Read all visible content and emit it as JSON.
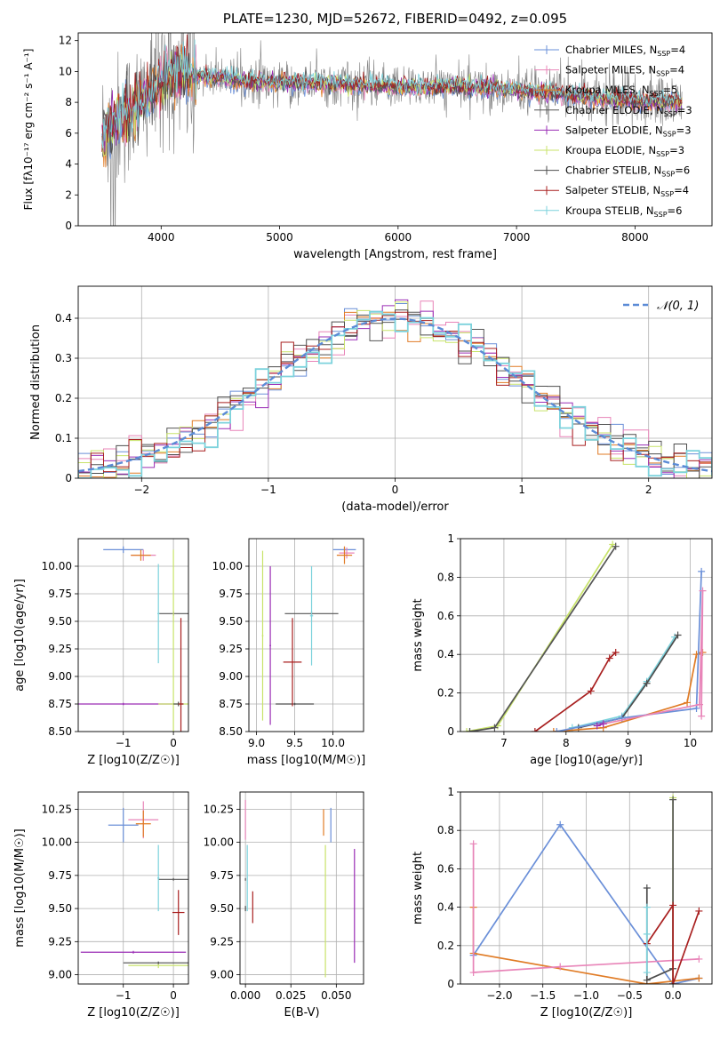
{
  "title": "PLATE=1230, MJD=52672, FIBERID=0492, z=0.095",
  "colors": {
    "Chabrier MILES": "#6a8fd8",
    "Salpeter MILES": "#e884b8",
    "Kroupa MILES": "#e07b25",
    "Chabrier ELODIE": "#555555",
    "Salpeter ELODIE": "#9a2cb5",
    "Kroupa ELODIE": "#c8e36a",
    "Chabrier STELIB": "#4d4d4d",
    "Salpeter STELIB": "#a81f1f",
    "Kroupa STELIB": "#7cd2dc",
    "data": "#808080"
  },
  "chart_data": [
    {
      "id": "spectrum",
      "type": "line",
      "xlabel": "wavelength [Angstrom, rest frame]",
      "ylabel": "Flux [f_λ10^-17 erg cm^-2 s^-1 A^-1]",
      "xlim": [
        3300,
        8650
      ],
      "ylim": [
        0,
        12.5
      ],
      "xticks": [
        4000,
        5000,
        6000,
        7000,
        8000
      ],
      "yticks": [
        0,
        2,
        4,
        6,
        8,
        10,
        12
      ],
      "legend": "top-right",
      "series": [
        {
          "name": "Chabrier MILES, N_SSP=4"
        },
        {
          "name": "Salpeter MILES, N_SSP=4"
        },
        {
          "name": "Kroupa MILES, N_SSP=5"
        },
        {
          "name": "Chabrier ELODIE, N_SSP=3"
        },
        {
          "name": "Salpeter ELODIE, N_SSP=3"
        },
        {
          "name": "Kroupa ELODIE, N_SSP=3"
        },
        {
          "name": "Chabrier STELIB, N_SSP=6"
        },
        {
          "name": "Salpeter STELIB, N_SSP=4"
        },
        {
          "name": "Kroupa STELIB, N_SSP=6"
        }
      ],
      "model_trend": {
        "x": [
          3500,
          3700,
          3900,
          4100,
          4400,
          4700,
          5000,
          5500,
          6000,
          6500,
          7000,
          7500,
          8000,
          8400
        ],
        "y": [
          6.0,
          7.2,
          8.5,
          10.0,
          9.6,
          9.4,
          9.3,
          9.2,
          9.0,
          9.0,
          8.8,
          8.4,
          8.1,
          8.0
        ]
      }
    },
    {
      "id": "residuals",
      "type": "line",
      "xlabel": "(data-model)/error",
      "ylabel": "Normed distribution",
      "xlim": [
        -2.5,
        2.5
      ],
      "ylim": [
        0,
        0.48
      ],
      "xticks": [
        -2,
        -1,
        0,
        1,
        2
      ],
      "yticks": [
        0.0,
        0.1,
        0.2,
        0.3,
        0.4
      ],
      "legend": "top-right",
      "reference_label": "𝒩(0, 1)",
      "bin_width": 0.1,
      "gaussian": {
        "mean": 0,
        "sigma": 1
      }
    },
    {
      "id": "age_vs_Z",
      "type": "scatter",
      "xlabel": "Z [log10(Z/Z☉)]",
      "ylabel": "age  [log10(age/yr)]",
      "xlim": [
        -1.9,
        0.3
      ],
      "ylim": [
        8.5,
        10.25
      ],
      "xticks": [
        -1,
        0
      ],
      "yticks": [
        8.5,
        8.75,
        9.0,
        9.25,
        9.5,
        9.75,
        10.0
      ],
      "ytick_labels": [
        "8.50",
        "8.75",
        "9.00",
        "9.25",
        "9.50",
        "9.75",
        "10.00"
      ],
      "points": [
        {
          "s": "Chabrier MILES",
          "x": -1.0,
          "xe": 0.4,
          "y": 10.15,
          "ye": 0.03
        },
        {
          "s": "Salpeter MILES",
          "x": -0.6,
          "xe": 0.25,
          "y": 10.1,
          "ye": 0.05
        },
        {
          "s": "Kroupa MILES",
          "x": -0.65,
          "xe": 0.2,
          "y": 10.1,
          "ye": 0.05
        },
        {
          "s": "Chabrier ELODIE",
          "x": 0.0,
          "xe": 0.3,
          "y": 9.57,
          "ye": 0.02
        },
        {
          "s": "Salpeter ELODIE",
          "x": -1.0,
          "xe": 1.0,
          "y": 8.75,
          "ye": 0.01
        },
        {
          "s": "Kroupa ELODIE",
          "x": 0.0,
          "xe": 0.3,
          "y": 8.75,
          "ye": 1.4
        },
        {
          "s": "Chabrier STELIB",
          "x": 0.1,
          "xe": 0.1,
          "y": 8.75,
          "ye": 0.02
        },
        {
          "s": "Salpeter STELIB",
          "x": 0.15,
          "xe": 0.05,
          "y": 8.75,
          "ye": 0.78
        },
        {
          "s": "Kroupa STELIB",
          "x": -0.3,
          "xe": 0.02,
          "y": 9.57,
          "ye": 0.45
        }
      ]
    },
    {
      "id": "age_vs_mass",
      "type": "scatter",
      "xlabel": "mass [log10(M/M☉)]",
      "ylabel": "",
      "xlim": [
        8.9,
        10.4
      ],
      "ylim": [
        8.5,
        10.25
      ],
      "xticks": [
        9.0,
        9.5,
        10.0
      ],
      "xtick_labels": [
        "9.0",
        "9.5",
        "10.0"
      ],
      "yticks": [
        8.5,
        8.75,
        9.0,
        9.25,
        9.5,
        9.75,
        10.0
      ],
      "ytick_labels": [
        "8.50",
        "8.75",
        "9.00",
        "9.25",
        "9.50",
        "9.75",
        "10.00"
      ],
      "points": [
        {
          "s": "Chabrier MILES",
          "x": 10.15,
          "xe": 0.15,
          "y": 10.15,
          "ye": 0.02
        },
        {
          "s": "Salpeter MILES",
          "x": 10.18,
          "xe": 0.1,
          "y": 10.12,
          "ye": 0.05
        },
        {
          "s": "Kroupa MILES",
          "x": 10.15,
          "xe": 0.1,
          "y": 10.1,
          "ye": 0.08
        },
        {
          "s": "Chabrier ELODIE",
          "x": 9.72,
          "xe": 0.35,
          "y": 9.57,
          "ye": 0.02
        },
        {
          "s": "Salpeter ELODIE",
          "x": 9.18,
          "xe": 0.01,
          "y": 9.28,
          "ye": 0.72
        },
        {
          "s": "Kroupa ELODIE",
          "x": 9.08,
          "xe": 0.01,
          "y": 9.37,
          "ye": 0.77
        },
        {
          "s": "Chabrier STELIB",
          "x": 9.5,
          "xe": 0.25,
          "y": 8.75,
          "ye": 0.01
        },
        {
          "s": "Salpeter STELIB",
          "x": 9.47,
          "xe": 0.12,
          "y": 9.13,
          "ye": 0.4
        },
        {
          "s": "Kroupa STELIB",
          "x": 9.72,
          "xe": 0.02,
          "y": 9.55,
          "ye": 0.45
        }
      ]
    },
    {
      "id": "weight_vs_age",
      "type": "line",
      "xlabel": "age  [log10(age/yr)]",
      "ylabel": "mass weight",
      "xlim": [
        6.3,
        10.35
      ],
      "ylim": [
        0,
        1.0
      ],
      "xticks": [
        7,
        8,
        9,
        10
      ],
      "yticks": [
        0.0,
        0.2,
        0.4,
        0.6,
        0.8,
        1.0
      ],
      "series": [
        {
          "s": "Kroupa ELODIE",
          "x": [
            6.4,
            6.9,
            8.75
          ],
          "y": [
            0.0,
            0.03,
            0.97
          ]
        },
        {
          "s": "Chabrier ELODIE",
          "x": [
            6.45,
            6.85,
            8.8
          ],
          "y": [
            0.0,
            0.02,
            0.96
          ]
        },
        {
          "s": "Salpeter STELIB",
          "x": [
            7.5,
            8.4,
            8.7,
            8.8
          ],
          "y": [
            0.0,
            0.21,
            0.38,
            0.41
          ]
        },
        {
          "s": "Kroupa STELIB",
          "x": [
            8.1,
            8.9,
            9.3,
            9.75
          ],
          "y": [
            0.02,
            0.08,
            0.26,
            0.49
          ]
        },
        {
          "s": "Chabrier STELIB",
          "x": [
            8.2,
            8.9,
            9.3,
            9.8
          ],
          "y": [
            0.02,
            0.07,
            0.25,
            0.5
          ]
        },
        {
          "s": "Kroupa MILES",
          "x": [
            7.8,
            8.6,
            9.95,
            10.1,
            10.2
          ],
          "y": [
            0.0,
            0.02,
            0.15,
            0.4,
            0.41
          ]
        },
        {
          "s": "Chabrier MILES",
          "x": [
            7.85,
            8.9,
            10.1,
            10.18
          ],
          "y": [
            0.0,
            0.07,
            0.12,
            0.83
          ]
        },
        {
          "s": "Salpeter MILES",
          "x": [
            8.6,
            10.15,
            10.2,
            10.18
          ],
          "y": [
            0.04,
            0.14,
            0.73,
            0.08
          ]
        },
        {
          "s": "Salpeter ELODIE",
          "x": [
            8.5,
            8.6
          ],
          "y": [
            0.03,
            0.04
          ]
        }
      ]
    },
    {
      "id": "mass_vs_Z",
      "type": "scatter",
      "xlabel": "Z [log10(Z/Z☉)]",
      "ylabel": "mass [log10(M/M☉)]",
      "xlim": [
        -1.9,
        0.3
      ],
      "ylim": [
        8.93,
        10.38
      ],
      "xticks": [
        -1,
        0
      ],
      "yticks": [
        9.0,
        9.25,
        9.5,
        9.75,
        10.0,
        10.25
      ],
      "ytick_labels": [
        "9.00",
        "9.25",
        "9.50",
        "9.75",
        "10.00",
        "10.25"
      ],
      "points": [
        {
          "s": "Chabrier MILES",
          "x": -1.0,
          "xe": 0.3,
          "y": 10.13,
          "ye": 0.13
        },
        {
          "s": "Salpeter MILES",
          "x": -0.6,
          "xe": 0.3,
          "y": 10.17,
          "ye": 0.14
        },
        {
          "s": "Kroupa MILES",
          "x": -0.6,
          "xe": 0.15,
          "y": 10.14,
          "ye": 0.1
        },
        {
          "s": "Chabrier ELODIE",
          "x": 0.0,
          "xe": 0.3,
          "y": 9.72,
          "ye": 0.01
        },
        {
          "s": "Salpeter ELODIE",
          "x": -0.8,
          "xe": 1.05,
          "y": 9.17,
          "ye": 0.01
        },
        {
          "s": "Kroupa ELODIE",
          "x": -0.3,
          "xe": 0.6,
          "y": 9.07,
          "ye": 0.02
        },
        {
          "s": "Chabrier STELIB",
          "x": -0.3,
          "xe": 0.7,
          "y": 9.09,
          "ye": 0.01
        },
        {
          "s": "Salpeter STELIB",
          "x": 0.1,
          "xe": 0.12,
          "y": 9.47,
          "ye": 0.17
        },
        {
          "s": "Kroupa STELIB",
          "x": -0.3,
          "xe": 0.02,
          "y": 9.73,
          "ye": 0.25
        }
      ]
    },
    {
      "id": "mass_vs_ebv",
      "type": "scatter",
      "xlabel": "E(B-V)",
      "ylabel": "",
      "xlim": [
        -0.003,
        0.065
      ],
      "ylim": [
        8.93,
        10.38
      ],
      "xticks": [
        0.0,
        0.025,
        0.05
      ],
      "xtick_labels": [
        "0.000",
        "0.025",
        "0.050"
      ],
      "yticks": [
        9.0,
        9.25,
        9.5,
        9.75,
        10.0,
        10.25
      ],
      "ytick_labels": [
        "9.00",
        "9.25",
        "9.50",
        "9.75",
        "10.00",
        "10.25"
      ],
      "points": [
        {
          "s": "Chabrier MILES",
          "x": 0.047,
          "xe": 0.0,
          "y": 10.13,
          "ye": 0.13
        },
        {
          "s": "Salpeter MILES",
          "x": 0.0,
          "xe": 0.0,
          "y": 10.17,
          "ye": 0.15
        },
        {
          "s": "Kroupa MILES",
          "x": 0.043,
          "xe": 0.0,
          "y": 10.15,
          "ye": 0.1
        },
        {
          "s": "Chabrier ELODIE",
          "x": 0.0,
          "xe": 0.0,
          "y": 9.72,
          "ye": 0.01
        },
        {
          "s": "Salpeter ELODIE",
          "x": 0.06,
          "xe": 0.0,
          "y": 9.52,
          "ye": 0.43
        },
        {
          "s": "Kroupa ELODIE",
          "x": 0.044,
          "xe": 0.0,
          "y": 9.48,
          "ye": 0.5
        },
        {
          "s": "Chabrier STELIB",
          "x": 0.0,
          "xe": 0.0,
          "y": 9.5,
          "ye": 0.02
        },
        {
          "s": "Salpeter STELIB",
          "x": 0.004,
          "xe": 0.0,
          "y": 9.51,
          "ye": 0.12
        },
        {
          "s": "Kroupa STELIB",
          "x": 0.001,
          "xe": 0.0,
          "y": 9.73,
          "ye": 0.25
        }
      ]
    },
    {
      "id": "weight_vs_Z",
      "type": "line",
      "xlabel": "Z [log10(Z/Z☉)]",
      "ylabel": "mass weight",
      "xlim": [
        -2.45,
        0.45
      ],
      "ylim": [
        0,
        1.0
      ],
      "xticks": [
        -2.0,
        -1.5,
        -1.0,
        -0.5,
        0.0
      ],
      "xtick_labels": [
        "−2.0",
        "−1.5",
        "−1.0",
        "−0.5",
        "0.0"
      ],
      "yticks": [
        0.0,
        0.2,
        0.4,
        0.6,
        0.8,
        1.0
      ],
      "series": [
        {
          "s": "Chabrier MILES",
          "x": [
            -2.3,
            -1.3,
            0.0,
            0.3
          ],
          "y": [
            0.15,
            0.83,
            0.0,
            0.03
          ]
        },
        {
          "s": "Kroupa MILES",
          "x": [
            -2.3,
            -2.3,
            -0.3,
            0.3
          ],
          "y": [
            0.4,
            0.16,
            0.0,
            0.03
          ]
        },
        {
          "s": "Salpeter MILES",
          "x": [
            -2.3,
            -2.3,
            -1.3,
            0.3
          ],
          "y": [
            0.73,
            0.06,
            0.09,
            0.13
          ]
        },
        {
          "s": "Kroupa ELODIE",
          "x": [
            0.0,
            0.0
          ],
          "y": [
            0.0,
            0.97
          ]
        },
        {
          "s": "Chabrier ELODIE",
          "x": [
            0.0,
            0.0
          ],
          "y": [
            0.0,
            0.96
          ]
        },
        {
          "s": "Chabrier STELIB",
          "x": [
            -0.3,
            -0.3,
            0.0
          ],
          "y": [
            0.5,
            0.02,
            0.08
          ]
        },
        {
          "s": "Salpeter STELIB",
          "x": [
            -0.3,
            0.0,
            0.0,
            0.3
          ],
          "y": [
            0.21,
            0.41,
            0.0,
            0.38
          ]
        },
        {
          "s": "Kroupa STELIB",
          "x": [
            -0.3,
            -0.3,
            -0.3
          ],
          "y": [
            0.26,
            0.4,
            0.06
          ]
        }
      ]
    }
  ]
}
